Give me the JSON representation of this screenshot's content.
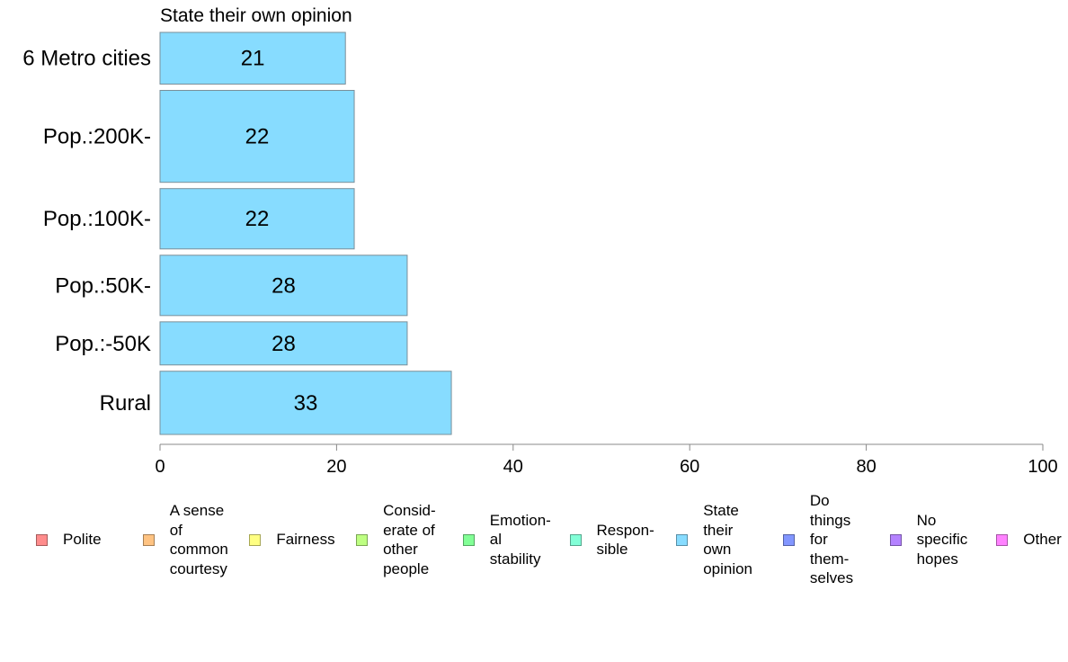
{
  "chart_data": {
    "type": "bar",
    "orientation": "horizontal",
    "title": "State their own opinion",
    "categories": [
      "6 Metro cities",
      "Pop.:200K-",
      "Pop.:100K-",
      "Pop.:50K-",
      "Pop.:-50K",
      "Rural"
    ],
    "category_weights": [
      0.9,
      1.6,
      1.05,
      1.05,
      0.75,
      1.1
    ],
    "series": [
      {
        "values": [
          21,
          22,
          22,
          28,
          28,
          33
        ],
        "color": "#87DCFF"
      }
    ],
    "data_labels": [
      "21",
      "22",
      "22",
      "28",
      "28",
      "33"
    ],
    "xlim": [
      0,
      100
    ],
    "xticks": [
      0,
      20,
      40,
      60,
      80,
      100
    ],
    "xtick_labels": [
      "0",
      "20",
      "40",
      "60",
      "80",
      "100"
    ],
    "grid": false,
    "legend_position": "bottom",
    "legend": [
      {
        "label": "Polite",
        "color": "#FF8C8C"
      },
      {
        "label": "A sense\nof\ncommon\ncourtesy",
        "color": "#FFC382"
      },
      {
        "label": "Fairness",
        "color": "#FFFF82"
      },
      {
        "label": "Consid-\nerate of\nother\npeople",
        "color": "#BEFF82"
      },
      {
        "label": "Emotion-\nal\nstability",
        "color": "#82FF96"
      },
      {
        "label": "Respon-\nsible",
        "color": "#82FFD7"
      },
      {
        "label": "State\ntheir\nown\nopinion",
        "color": "#87DCFF"
      },
      {
        "label": "Do\nthings\nfor\nthem-\nselves",
        "color": "#8296FF"
      },
      {
        "label": "No\nspecific\nhopes",
        "color": "#B482FF"
      },
      {
        "label": "Other",
        "color": "#FF82FF"
      }
    ]
  }
}
